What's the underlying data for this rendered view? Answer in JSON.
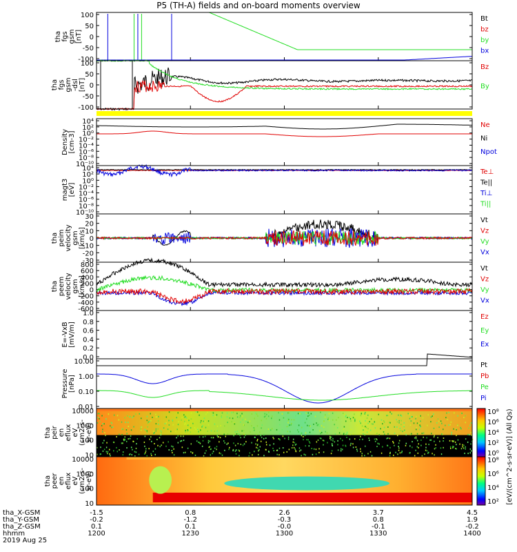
{
  "title": "P5 (TH-A) fields and on-board moments overview",
  "colors": {
    "black": "#000000",
    "red": "#e00000",
    "green": "#22dd22",
    "blue": "#0000dd",
    "yellow": "#ffff00"
  },
  "chart_data": [
    {
      "id": "fgs",
      "type": "line",
      "ylabel": [
        "tha",
        "fgs",
        "gsm",
        "[nT]"
      ],
      "yticks": [
        "100",
        "50",
        "0",
        "-50",
        "-100"
      ],
      "legend": [
        {
          "name": "Bt",
          "color": "black"
        },
        {
          "name": "bz",
          "color": "red"
        },
        {
          "name": "by",
          "color": "green"
        },
        {
          "name": "bx",
          "color": "blue"
        }
      ],
      "ylim": [
        -100,
        100
      ]
    },
    {
      "id": "fgs_dsl",
      "type": "line",
      "ylabel": [
        "tha",
        "fgs",
        "gsm",
        "-dsl",
        "[nT]"
      ],
      "yticks": [
        "100",
        "50",
        "0",
        "-50",
        "-100"
      ],
      "legend": [
        {
          "name": "Bz",
          "color": "red"
        },
        {
          "name": "By",
          "color": "green"
        }
      ],
      "ylim": [
        -100,
        100
      ]
    },
    {
      "id": "density",
      "type": "line",
      "ylabel": [
        "Density",
        "[cm-3]"
      ],
      "yticks": [
        "10⁴",
        "10²",
        "10⁰",
        "10⁻²",
        "10⁻⁴",
        "10⁻⁶",
        "10⁻⁸",
        "10⁻¹⁰"
      ],
      "legend": [
        {
          "name": "Ne",
          "color": "red"
        },
        {
          "name": "Ni",
          "color": "black"
        },
        {
          "name": "Npot",
          "color": "blue"
        }
      ],
      "scale": "log"
    },
    {
      "id": "temp",
      "type": "line",
      "ylabel": [
        "magt3",
        "[eV]"
      ],
      "yticks": [
        "10⁴",
        "10²",
        "10⁰",
        "10⁻²",
        "10⁻⁴",
        "10⁻⁶",
        "10⁻⁸",
        "10⁻¹⁰"
      ],
      "legend": [
        {
          "name": "Te⊥",
          "color": "red"
        },
        {
          "name": "Te||",
          "color": "black"
        },
        {
          "name": "Ti⊥",
          "color": "blue"
        },
        {
          "name": "Ti||",
          "color": "green"
        }
      ],
      "scale": "log"
    },
    {
      "id": "vi",
      "type": "line",
      "ylabel": [
        "tha",
        "peim",
        "velocity",
        "gsm",
        "[km/s]"
      ],
      "yticks": [
        "30",
        "20",
        "10",
        "0",
        "-10",
        "-20",
        "-30"
      ],
      "legend": [
        {
          "name": "Vt",
          "color": "black"
        },
        {
          "name": "Vz",
          "color": "red"
        },
        {
          "name": "Vy",
          "color": "green"
        },
        {
          "name": "Vx",
          "color": "blue"
        }
      ],
      "ylim": [
        -30,
        30
      ]
    },
    {
      "id": "ve",
      "type": "line",
      "ylabel": [
        "tha",
        "peem",
        "velocity",
        "gsm",
        "[km/s]"
      ],
      "yticks": [
        "800",
        "600",
        "400",
        "200",
        "0",
        "-200",
        "-400",
        "-600"
      ],
      "legend": [
        {
          "name": "Vt",
          "color": "black"
        },
        {
          "name": "Vz",
          "color": "red"
        },
        {
          "name": "Vy",
          "color": "green"
        },
        {
          "name": "Vx",
          "color": "blue"
        }
      ],
      "ylim": [
        -600,
        800
      ]
    },
    {
      "id": "efield",
      "type": "line",
      "ylabel": [
        "E=-VxB",
        "[mV/m]"
      ],
      "yticks": [
        "1.0",
        "0.8",
        "0.6",
        "0.4",
        "0.2",
        "0.0"
      ],
      "legend": [
        {
          "name": "Ez",
          "color": "red"
        },
        {
          "name": "Ey",
          "color": "green"
        },
        {
          "name": "Ex",
          "color": "blue"
        }
      ],
      "ylim": [
        0,
        1
      ]
    },
    {
      "id": "pressure",
      "type": "line",
      "ylabel": [
        "Pressure",
        "[nPa]"
      ],
      "yticks": [
        "10.00",
        "1.00",
        "0.10",
        "0.01"
      ],
      "legend": [
        {
          "name": "Pt",
          "color": "black"
        },
        {
          "name": "Pb",
          "color": "red"
        },
        {
          "name": "Pe",
          "color": "green"
        },
        {
          "name": "Pi",
          "color": "blue"
        }
      ],
      "scale": "log"
    },
    {
      "id": "ion_spec",
      "type": "heatmap",
      "ylabel": [
        "tha",
        "peir",
        "en",
        "eflux",
        "eV",
        "(cm2-s-",
        "sr-eV)"
      ],
      "yticks": [
        "10000",
        "1000",
        "100",
        "10"
      ],
      "colorbar": [
        "10⁸",
        "10⁶",
        "10⁴",
        "10²",
        "10⁰"
      ]
    },
    {
      "id": "ele_spec",
      "type": "heatmap",
      "ylabel": [
        "tha",
        "peer",
        "en",
        "eflux",
        "eV",
        "(cm2-s-",
        "sr-eV)"
      ],
      "yticks": [
        "10000",
        "1000",
        "100",
        "10"
      ],
      "colorbar": [
        "10⁸",
        "10⁶",
        "10⁴",
        "10²"
      ]
    }
  ],
  "colorbar_label": "[eV/(cm^2-s-sr-eV)] (All Qs)",
  "xaxis": {
    "row_labels": [
      "tha_X-GSM",
      "tha_Y-GSM",
      "tha_Z-GSM",
      "hhmm",
      "2019 Aug 25"
    ],
    "columns": [
      [
        "-1.5",
        "-0.2",
        "0.1",
        "1200"
      ],
      [
        "0.8",
        "-1.2",
        "0.1",
        "1230"
      ],
      [
        "2.6",
        "-0.3",
        "-0.0",
        "1300"
      ],
      [
        "3.7",
        "0.8",
        "-0.1",
        "1330"
      ],
      [
        "4.5",
        "1.9",
        "-0.2",
        "1400"
      ]
    ]
  }
}
